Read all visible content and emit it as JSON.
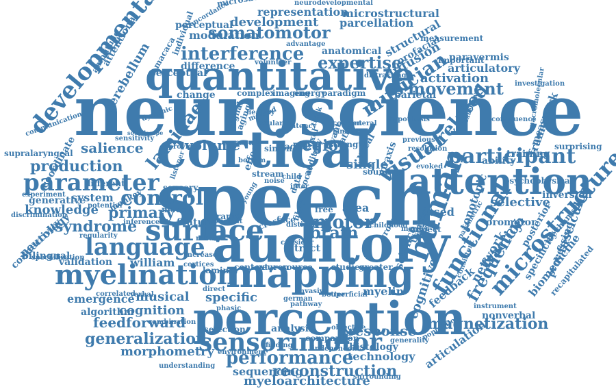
{
  "colors": {
    "ink": "#3f7bad",
    "background": "#ffffff"
  },
  "words": [
    "neuroscience",
    "speech",
    "auditory",
    "cortical",
    "perception",
    "mapping",
    "quantitative",
    "myelination",
    "attention",
    "surface",
    "language",
    "sensorimotor",
    "developmental",
    "parameter",
    "human",
    "microstructure",
    "functional",
    "interference",
    "performance",
    "somatomotor",
    "expertise",
    "musician",
    "participant",
    "control",
    "visual",
    "movement",
    "production",
    "motor",
    "primary",
    "syndrome",
    "brain",
    "region",
    "magnetization",
    "generalization",
    "reconstruction",
    "morphometry",
    "related",
    "activation",
    "selective",
    "cognition",
    "feedforward",
    "myeloarchitecture",
    "frequency",
    "musical",
    "representation",
    "microstructural",
    "development",
    "parcellation",
    "modulation",
    "perceptual",
    "anatomical",
    "diffusion",
    "structural",
    "articulatory",
    "paravermis",
    "cerebellum",
    "laminae",
    "salience",
    "volume",
    "knowledge",
    "system",
    "generative",
    "connectivity",
    "neurology",
    "bilingual",
    "validation",
    "william",
    "emergence",
    "algorithm",
    "specific",
    "response",
    "technology",
    "histology",
    "myelin",
    "feedback",
    "network",
    "fraction",
    "tonotopic",
    "biomedicine",
    "fasciculus",
    "cognitive",
    "articulation",
    "nonverbal",
    "measurement",
    "framework",
    "oromotor",
    "sequencing",
    "selection",
    "analysis",
    "coordinate",
    "supralaryngeal",
    "training",
    "measure",
    "ability",
    "inversion",
    "processing",
    "specificity",
    "posterior",
    "parietal",
    "orofacial",
    "based",
    "subject",
    "area",
    "single",
    "tract",
    "face",
    "cross",
    "rapid",
    "feature",
    "model",
    "change",
    "difference",
    "complex",
    "imaging",
    "energy",
    "paradigm",
    "volunteer",
    "macaca",
    "individual",
    "perceptual",
    "neurodevelopmental",
    "microsaccade",
    "concordance",
    "different",
    "monkey",
    "ratio",
    "strength",
    "sound",
    "vocal",
    "recapitulated",
    "surprising",
    "instrument",
    "general",
    "population",
    "investigation",
    "important",
    "science",
    "transfer",
    "group",
    "source",
    "neuron",
    "context",
    "laminar",
    "studies",
    "greater",
    "sensory",
    "relevant",
    "content",
    "lamina",
    "correlated",
    "praxis",
    "communication",
    "amplitude",
    "attentional",
    "verbal",
    "dynamic",
    "healthy",
    "result",
    "simon",
    "adult",
    "comparison",
    "invasive",
    "german",
    "objective",
    "independent",
    "understanding",
    "environment",
    "combination",
    "sensitivity",
    "discrimination",
    "specialization",
    "experiment",
    "potential",
    "regularity",
    "inference",
    "congruence",
    "psychophysical",
    "generality",
    "surrounding",
    "superficial",
    "evoked",
    "marker",
    "child",
    "voxel",
    "latency",
    "distinct",
    "robust",
    "phasic",
    "better",
    "finding",
    "direct",
    "cortices",
    "increase",
    "method",
    "signal",
    "aging",
    "stream",
    "effect",
    "advantage",
    "soundscape",
    "listener",
    "proficient",
    "young",
    "noise",
    "hypothesis",
    "previous",
    "resolution",
    "distracting",
    "childhood",
    "parametric",
    "consistent",
    "mechanism",
    "macromolecular",
    "extensive",
    "consider",
    "fiber",
    "pathway",
    "data",
    "inter",
    "free",
    "thick",
    "bottom",
    "ocular",
    "provide",
    "auditory",
    "vocal"
  ]
}
